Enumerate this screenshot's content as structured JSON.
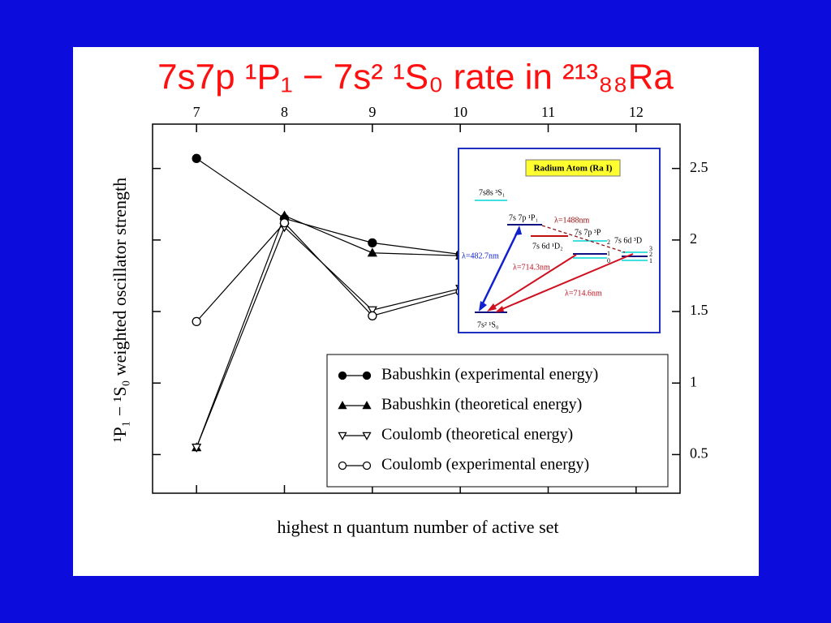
{
  "chart_data": {
    "type": "line",
    "title": "7s7p ¹P₁ − 7s² ¹S₀ rate in ²¹³₈₈Ra",
    "x_label": "highest n quantum number of active set",
    "y_label": "¹P₁ − ¹S₀ weighted oscillator strength",
    "x": [
      7,
      8,
      9,
      10,
      11,
      12
    ],
    "xlim": [
      6.5,
      12.5
    ],
    "xticks": [
      7,
      8,
      9,
      10,
      11,
      12
    ],
    "ylim": [
      0.23,
      2.81
    ],
    "yticks": [
      0.5,
      1,
      1.5,
      2,
      2.5
    ],
    "series": [
      {
        "name": "Babushkin (experimental energy)",
        "color": "#000000",
        "marker": "circle",
        "filled": true,
        "values": [
          2.57,
          2.15,
          1.98,
          1.9,
          null,
          null
        ]
      },
      {
        "name": "Babushkin (theoretical energy)",
        "color": "#000000",
        "marker": "triangle-up",
        "filled": true,
        "values": [
          0.55,
          2.17,
          1.91,
          1.89,
          null,
          null
        ]
      },
      {
        "name": "Coulomb (theoretical energy)",
        "color": "#000000",
        "marker": "triangle-down",
        "filled": false,
        "values": [
          0.55,
          2.09,
          1.51,
          1.66,
          null,
          null
        ]
      },
      {
        "name": "Coulomb (experimental energy)",
        "color": "#000000",
        "marker": "circle",
        "filled": false,
        "values": [
          1.43,
          2.12,
          1.47,
          1.64,
          null,
          null
        ]
      }
    ],
    "inset": {
      "title": "Radium Atom (Ra I)",
      "levels": [
        "7s8s ³S₁",
        "7s 7p ¹P₁",
        "7s 7p ³P",
        "7s 6d ¹D₂",
        "7s 6d ³D",
        "7s² ¹S₀"
      ],
      "wavelengths": [
        "λ=1488nm",
        "λ=482.7nm",
        "λ=714.3nm",
        "λ=714.6nm"
      ],
      "j_labels": [
        "2",
        "1",
        "0",
        "3",
        "2",
        "1"
      ]
    }
  }
}
